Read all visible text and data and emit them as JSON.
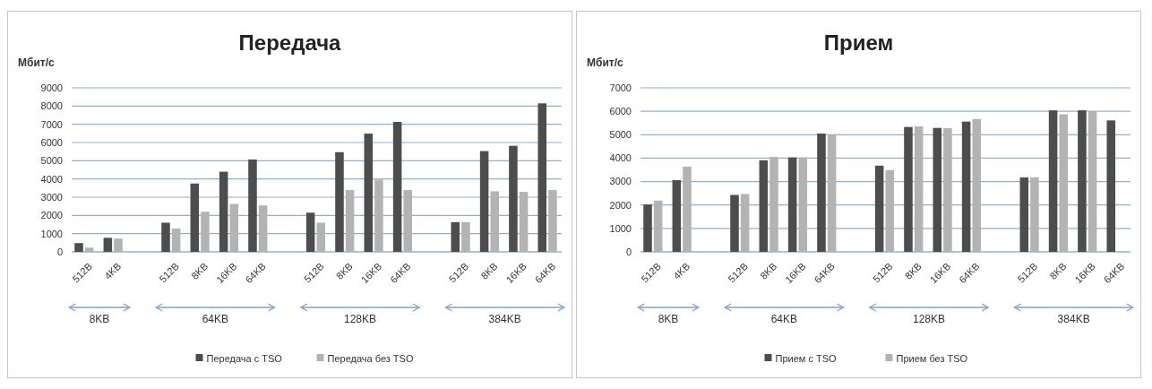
{
  "chart_data": [
    {
      "type": "bar",
      "title": "Передача",
      "ylabel": "Мбит/с",
      "categories": [
        "512B",
        "4KB",
        null,
        "512B",
        "8KB",
        "16KB",
        "64KB",
        null,
        "512B",
        "8KB",
        "16KB",
        "64KB",
        null,
        "512B",
        "8KB",
        "16KB",
        "64KB"
      ],
      "series": [
        {
          "name": "Передача с TSO",
          "color": "#4d4d4d",
          "values": [
            480,
            770,
            null,
            1600,
            3750,
            4400,
            5070,
            null,
            2150,
            5470,
            6490,
            7130,
            null,
            1630,
            5530,
            5820,
            8150
          ]
        },
        {
          "name": "Передача без TSO",
          "color": "#b3b3b3",
          "values": [
            230,
            730,
            null,
            1280,
            2200,
            2630,
            2550,
            null,
            1600,
            3390,
            3970,
            3390,
            null,
            1630,
            3320,
            3290,
            3390
          ]
        }
      ],
      "ylim": [
        0,
        9000
      ],
      "yticks": [
        0,
        1000,
        2000,
        3000,
        4000,
        5000,
        6000,
        7000,
        8000,
        9000
      ],
      "grid": "y",
      "legend": "bottom",
      "annotations": [
        "8KB",
        "64KB",
        "128KB",
        "384KB"
      ]
    },
    {
      "type": "bar",
      "title": "Прием",
      "ylabel": "Мбит/с",
      "categories": [
        "512B",
        "4KB",
        null,
        "512B",
        "8KB",
        "16KB",
        "64KB",
        null,
        "512B",
        "8KB",
        "16KB",
        "64KB",
        null,
        "512B",
        "8KB",
        "16KB",
        "64KB"
      ],
      "series": [
        {
          "name": "Прием с TSO",
          "color": "#4d4d4d",
          "values": [
            2020,
            3060,
            null,
            2430,
            3910,
            4030,
            5050,
            null,
            3680,
            5330,
            5290,
            5560,
            null,
            3180,
            6040,
            6040,
            5610
          ]
        },
        {
          "name": "Прием без TSO",
          "color": "#b3b3b3",
          "values": [
            2190,
            3640,
            null,
            2470,
            4050,
            4030,
            4990,
            null,
            3490,
            5360,
            5280,
            5670,
            null,
            3180,
            5870,
            6010,
            null
          ]
        }
      ],
      "ylim": [
        0,
        7000
      ],
      "yticks": [
        0,
        1000,
        2000,
        3000,
        4000,
        5000,
        6000,
        7000
      ],
      "grid": "y",
      "legend": "bottom",
      "annotations": [
        "8KB",
        "64KB",
        "128KB",
        "384KB"
      ]
    }
  ]
}
